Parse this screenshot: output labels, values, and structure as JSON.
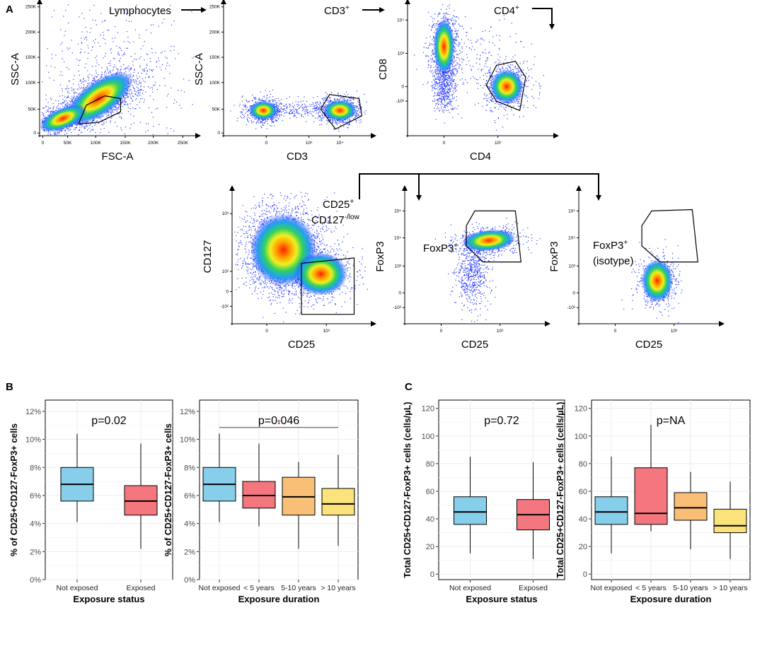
{
  "colors": {
    "not_exposed": "#87CEEB",
    "lt5": "#F4777F",
    "5to10": "#F9BF77",
    "gt10": "#F9E37A",
    "axis": "#000000",
    "grid": "#EBEBEB",
    "sig_star": "#B03030"
  },
  "panel_letters": {
    "A": "A",
    "B": "B",
    "C": "C"
  },
  "flow_panels": [
    {
      "id": "lymph",
      "ylabel": "SSC-A",
      "xlabel": "FSC-A",
      "gate_label": "Lymphocytes",
      "gate_sup": "",
      "yticks": [
        "250K",
        "200K",
        "150K",
        "100K",
        "50K",
        "0"
      ],
      "xticks": [
        "0",
        "50K",
        "100K",
        "150K",
        "200K",
        "250K"
      ]
    },
    {
      "id": "cd3",
      "ylabel": "SSC-A",
      "xlabel": "CD3",
      "gate_label": "CD3",
      "gate_sup": "+",
      "yticks": [
        "250K",
        "200K",
        "150K",
        "100K",
        "50K",
        "0"
      ],
      "xticks": [
        "0",
        "10³",
        "10⁴"
      ]
    },
    {
      "id": "cd4",
      "ylabel": "CD8",
      "xlabel": "CD4",
      "gate_label": "CD4",
      "gate_sup": "+",
      "yticks": [
        "10⁴",
        "10³",
        "0",
        "-10³"
      ],
      "xticks": [
        "0",
        "10³"
      ]
    },
    {
      "id": "cd25",
      "ylabel": "CD127",
      "xlabel": "CD25",
      "gate_label": "CD25",
      "gate_sup": "+",
      "gate_label2": "CD127",
      "gate_sup2": "-/low",
      "yticks": [
        "10³",
        "10²",
        "0",
        "-10²"
      ],
      "xticks": [
        "0",
        "10³"
      ]
    },
    {
      "id": "foxp3",
      "ylabel": "FoxP3",
      "xlabel": "CD25",
      "gate_label": "FoxP3",
      "gate_sup": "+",
      "yticks": [
        "10⁵",
        "10⁴",
        "10³",
        "0",
        "-10³"
      ],
      "xticks": [
        "0",
        "10³"
      ]
    },
    {
      "id": "iso",
      "ylabel": "FoxP3",
      "xlabel": "CD25",
      "gate_label": "FoxP3",
      "gate_sup": "+",
      "gate_label2": "(isotype)",
      "yticks": [
        "10⁵",
        "10⁴",
        "10³",
        "0",
        "-10³"
      ],
      "xticks": [
        "0",
        "10³"
      ]
    }
  ],
  "chart_data": [
    {
      "type": "box",
      "panel": "B-left",
      "title": "p=0.02",
      "ylabel": "% of CD25+CD127-FoxP3+ cells",
      "xlabel": "Exposure status",
      "ylim": [
        0,
        12.8
      ],
      "yticks": [
        0,
        2,
        4,
        6,
        8,
        10,
        12
      ],
      "ytick_labels": [
        "0%",
        "2%",
        "4%",
        "6%",
        "8%",
        "10%",
        "12%"
      ],
      "categories": [
        "Not exposed",
        "Exposed"
      ],
      "boxes": [
        {
          "min": 4.1,
          "q1": 5.6,
          "median": 6.8,
          "q3": 8.0,
          "max": 10.4,
          "color_key": "not_exposed"
        },
        {
          "min": 2.2,
          "q1": 4.6,
          "median": 5.6,
          "q3": 6.7,
          "max": 9.7,
          "color_key": "lt5"
        }
      ]
    },
    {
      "type": "box",
      "panel": "B-right",
      "title": "p=0.046",
      "ylabel": "% of CD25+CD127-FoxP3+ cells",
      "xlabel": "Exposure duration",
      "ylim": [
        0,
        12.8
      ],
      "yticks": [
        0,
        2,
        4,
        6,
        8,
        10,
        12
      ],
      "ytick_labels": [
        "0%",
        "2%",
        "4%",
        "6%",
        "8%",
        "10%",
        "12%"
      ],
      "categories": [
        "Not exposed",
        "< 5 years",
        "5-10 years",
        "> 10 years"
      ],
      "boxes": [
        {
          "min": 4.1,
          "q1": 5.6,
          "median": 6.8,
          "q3": 8.0,
          "max": 10.4,
          "color_key": "not_exposed"
        },
        {
          "min": 3.8,
          "q1": 5.1,
          "median": 6.0,
          "q3": 7.0,
          "max": 9.7,
          "color_key": "lt5"
        },
        {
          "min": 2.2,
          "q1": 4.6,
          "median": 5.9,
          "q3": 7.3,
          "max": 8.4,
          "color_key": "5to10"
        },
        {
          "min": 2.4,
          "q1": 4.6,
          "median": 5.4,
          "q3": 6.5,
          "max": 8.9,
          "color_key": "gt10"
        }
      ],
      "significance": {
        "from": 0,
        "to": 3,
        "y": 10.85,
        "label": "*"
      }
    },
    {
      "type": "box",
      "panel": "C-left",
      "title": "p=0.72",
      "ylabel": "Total CD25+CD127-FoxP3+ cells (cells/μL)",
      "xlabel": "Exposure status",
      "ylim": [
        -4,
        126
      ],
      "yticks": [
        0,
        20,
        40,
        60,
        80,
        100,
        120
      ],
      "ytick_labels": [
        "0",
        "20",
        "40",
        "60",
        "80",
        "100",
        "120"
      ],
      "categories": [
        "Not exposed",
        "Exposed"
      ],
      "boxes": [
        {
          "min": 15,
          "q1": 36,
          "median": 45,
          "q3": 56,
          "max": 85,
          "color_key": "not_exposed"
        },
        {
          "min": 11,
          "q1": 32,
          "median": 43,
          "q3": 54,
          "max": 81,
          "color_key": "lt5"
        }
      ]
    },
    {
      "type": "box",
      "panel": "C-right",
      "title": "p=NA",
      "ylabel": "Total CD25+CD127-FoxP3+ cells (cells/μL)",
      "xlabel": "Exposure duration",
      "ylim": [
        -4,
        126
      ],
      "yticks": [
        0,
        20,
        40,
        60,
        80,
        100,
        120
      ],
      "ytick_labels": [
        "0",
        "20",
        "40",
        "60",
        "80",
        "100",
        "120"
      ],
      "categories": [
        "Not exposed",
        "< 5 years",
        "5-10 years",
        "> 10 years"
      ],
      "boxes": [
        {
          "min": 15,
          "q1": 36,
          "median": 45,
          "q3": 56,
          "max": 85,
          "color_key": "not_exposed"
        },
        {
          "min": 31,
          "q1": 36,
          "median": 44,
          "q3": 77,
          "max": 108,
          "color_key": "lt5"
        },
        {
          "min": 18,
          "q1": 39,
          "median": 48,
          "q3": 59,
          "max": 74,
          "color_key": "5to10"
        },
        {
          "min": 11,
          "q1": 30,
          "median": 35,
          "q3": 47,
          "max": 67,
          "color_key": "gt10"
        }
      ]
    }
  ]
}
